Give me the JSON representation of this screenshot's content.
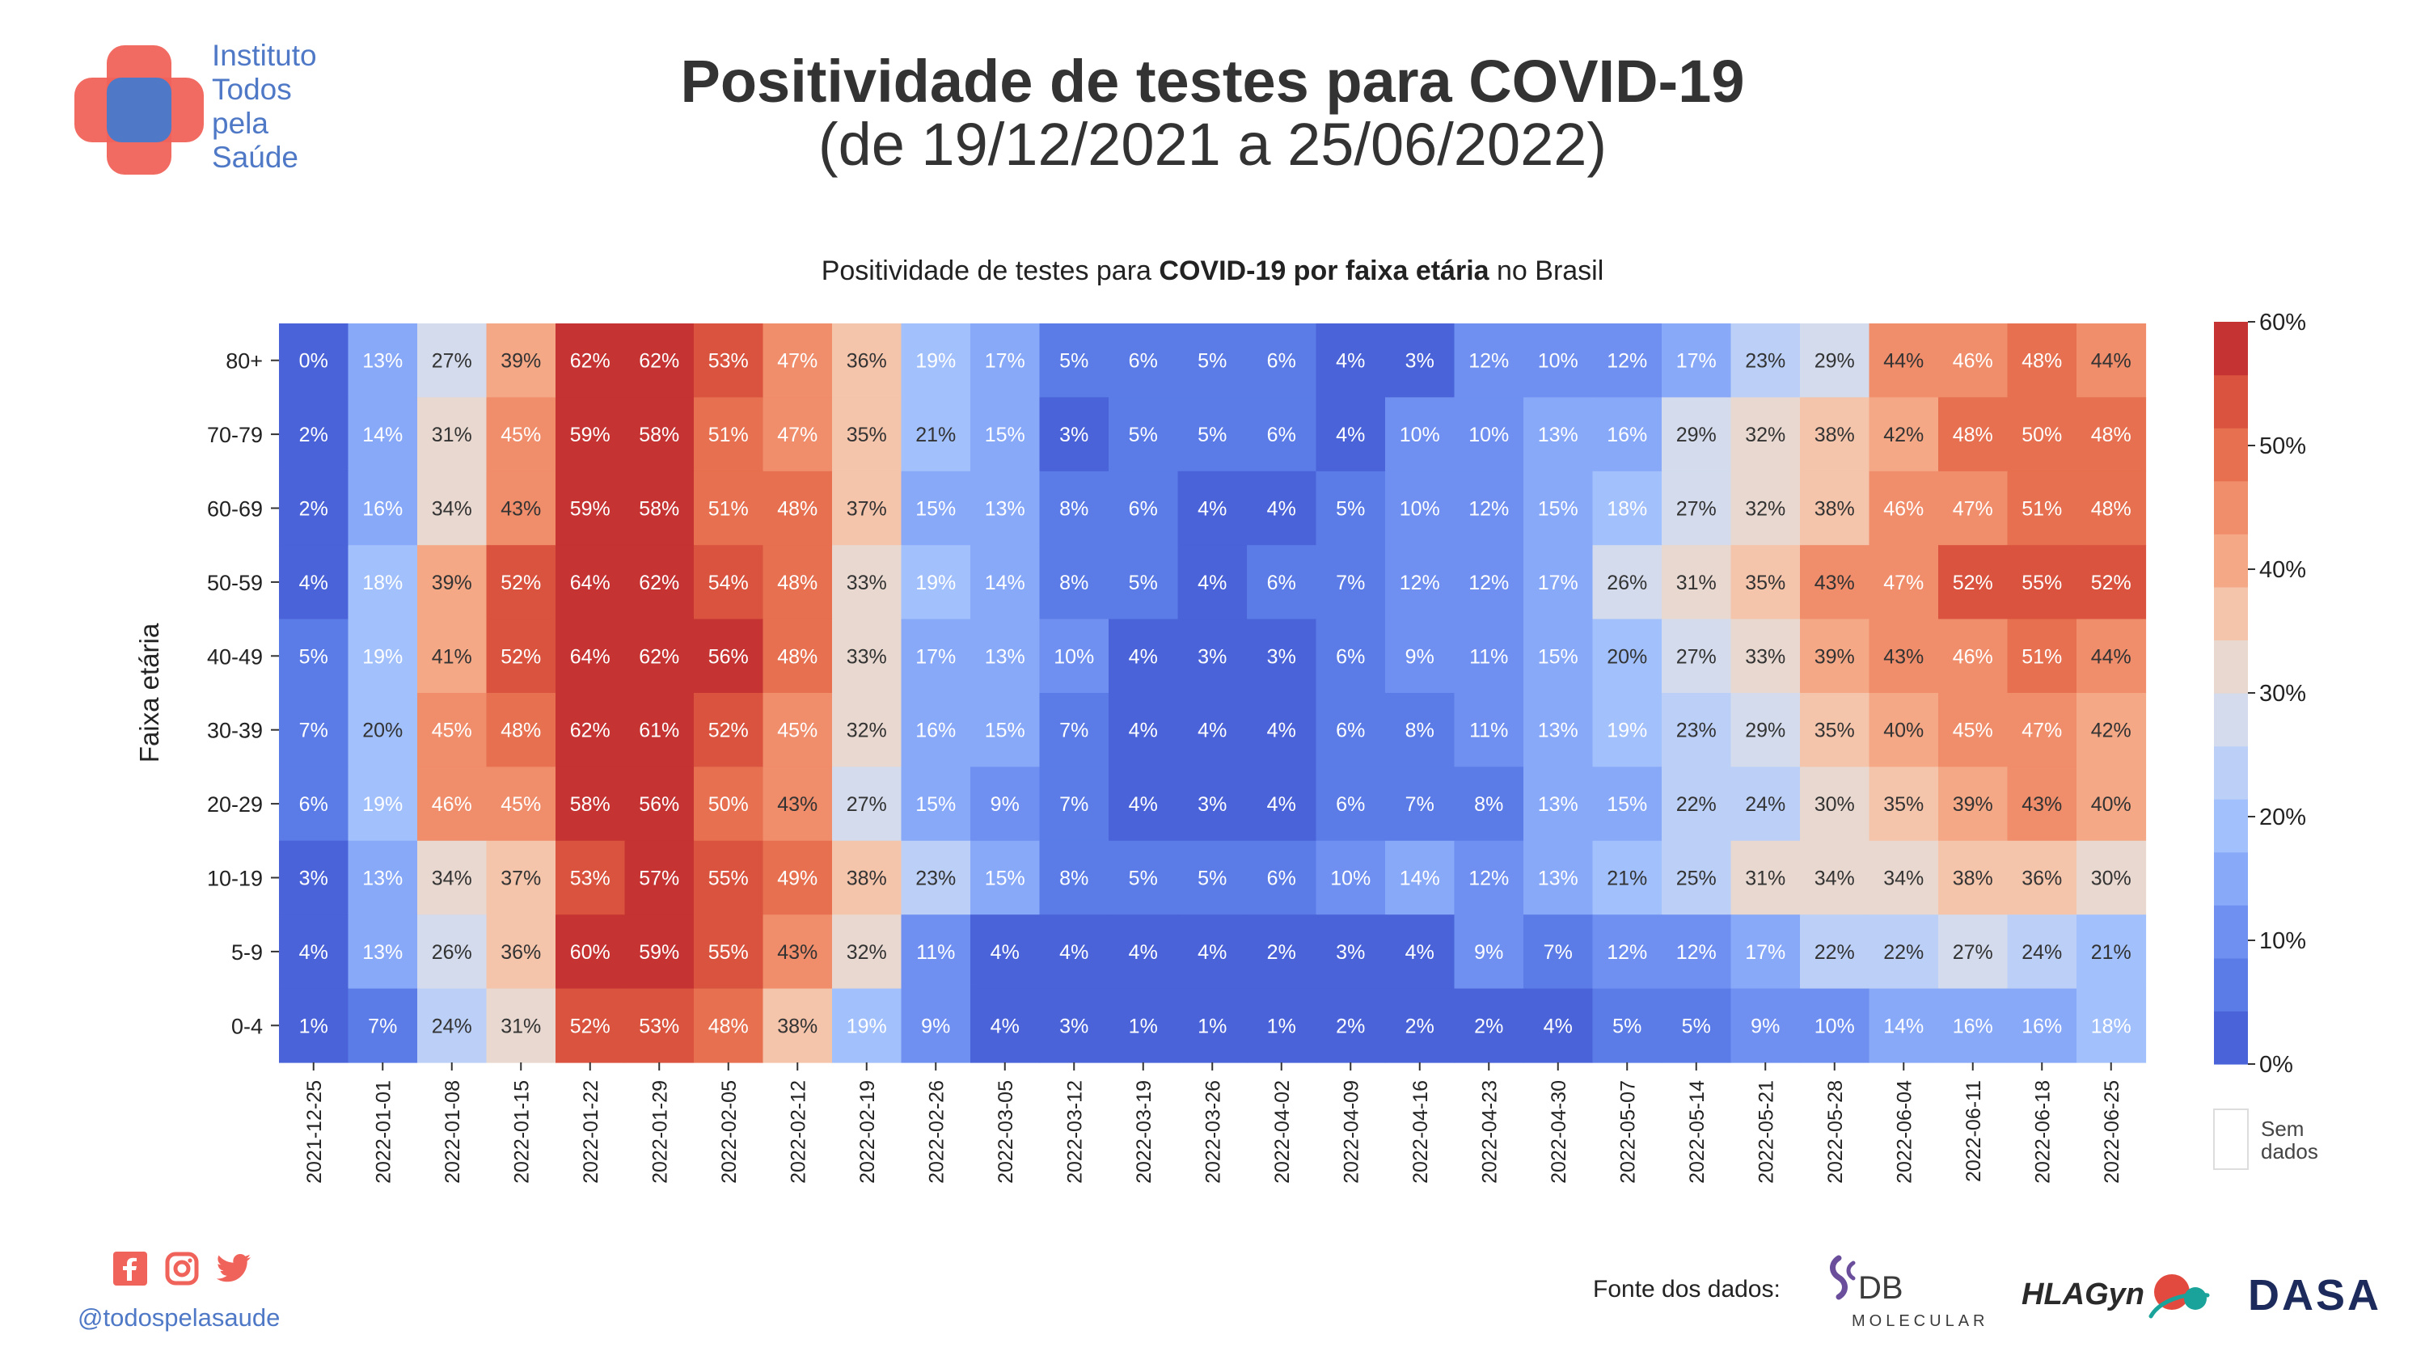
{
  "header": {
    "logo_lines": [
      "Instituto",
      "Todos",
      "pela",
      "Saúde"
    ],
    "title": "Positividade de testes para COVID-19",
    "subtitle": "(de 19/12/2021 a 25/06/2022)"
  },
  "chart_subtitle": {
    "prefix": "Positividade de testes para ",
    "bold": "COVID-19 por faixa etária",
    "suffix": " no Brasil"
  },
  "chart_data": {
    "type": "heatmap",
    "ylabel": "Faixa etária",
    "x": [
      "2021-12-25",
      "2022-01-01",
      "2022-01-08",
      "2022-01-15",
      "2022-01-22",
      "2022-01-29",
      "2022-02-05",
      "2022-02-12",
      "2022-02-19",
      "2022-02-26",
      "2022-03-05",
      "2022-03-12",
      "2022-03-19",
      "2022-03-26",
      "2022-04-02",
      "2022-04-09",
      "2022-04-16",
      "2022-04-23",
      "2022-04-30",
      "2022-05-07",
      "2022-05-14",
      "2022-05-21",
      "2022-05-28",
      "2022-06-04",
      "2022-06-11",
      "2022-06-18",
      "2022-06-25"
    ],
    "y": [
      "80+",
      "70-79",
      "60-69",
      "50-59",
      "40-49",
      "30-39",
      "20-29",
      "10-19",
      "5-9",
      "0-4"
    ],
    "values": [
      [
        0,
        13,
        27,
        39,
        62,
        62,
        53,
        47,
        36,
        19,
        17,
        5,
        6,
        5,
        6,
        4,
        3,
        12,
        10,
        12,
        17,
        23,
        29,
        44,
        46,
        48,
        44
      ],
      [
        2,
        14,
        31,
        45,
        59,
        58,
        51,
        47,
        35,
        21,
        15,
        3,
        5,
        5,
        6,
        4,
        10,
        10,
        13,
        16,
        29,
        32,
        38,
        42,
        48,
        50,
        48
      ],
      [
        2,
        16,
        34,
        43,
        59,
        58,
        51,
        48,
        37,
        15,
        13,
        8,
        6,
        4,
        4,
        5,
        10,
        12,
        15,
        18,
        27,
        32,
        38,
        46,
        47,
        51,
        48
      ],
      [
        4,
        18,
        39,
        52,
        64,
        62,
        54,
        48,
        33,
        19,
        14,
        8,
        5,
        4,
        6,
        7,
        12,
        12,
        17,
        26,
        31,
        35,
        43,
        47,
        52,
        55,
        52
      ],
      [
        5,
        19,
        41,
        52,
        64,
        62,
        56,
        48,
        33,
        17,
        13,
        10,
        4,
        3,
        3,
        6,
        9,
        11,
        15,
        20,
        27,
        33,
        39,
        43,
        46,
        51,
        44
      ],
      [
        7,
        20,
        45,
        48,
        62,
        61,
        52,
        45,
        32,
        16,
        15,
        7,
        4,
        4,
        4,
        6,
        8,
        11,
        13,
        19,
        23,
        29,
        35,
        40,
        45,
        47,
        42
      ],
      [
        6,
        19,
        46,
        45,
        58,
        56,
        50,
        43,
        27,
        15,
        9,
        7,
        4,
        3,
        4,
        6,
        7,
        8,
        13,
        15,
        22,
        24,
        30,
        35,
        39,
        43,
        40
      ],
      [
        3,
        13,
        34,
        37,
        53,
        57,
        55,
        49,
        38,
        23,
        15,
        8,
        5,
        5,
        6,
        10,
        14,
        12,
        13,
        21,
        25,
        31,
        34,
        34,
        38,
        36,
        30
      ],
      [
        4,
        13,
        26,
        36,
        60,
        59,
        55,
        43,
        32,
        11,
        4,
        4,
        4,
        4,
        2,
        3,
        4,
        9,
        7,
        12,
        12,
        17,
        22,
        22,
        27,
        24,
        21
      ],
      [
        1,
        7,
        24,
        31,
        52,
        53,
        48,
        38,
        19,
        9,
        4,
        3,
        1,
        1,
        1,
        2,
        2,
        2,
        4,
        5,
        5,
        9,
        10,
        14,
        16,
        16,
        18
      ]
    ],
    "value_suffix": "%",
    "colorbar": {
      "ticks": [
        "0%",
        "10%",
        "20%",
        "30%",
        "40%",
        "50%",
        "60%"
      ],
      "range": [
        0,
        60
      ],
      "colors": [
        "#4a63d8",
        "#5b7ce7",
        "#6f90f1",
        "#88a8f8",
        "#a2c0fb",
        "#bcd0f7",
        "#d3dbec",
        "#e8d8cf",
        "#f4c4ab",
        "#f5a886",
        "#f08d6b",
        "#e6704f",
        "#d9533e",
        "#c53333"
      ]
    },
    "no_data_label": [
      "Sem",
      "dados"
    ]
  },
  "footer": {
    "handle": "@todospelasaude",
    "source_label": "Fonte dos dados:",
    "partners": [
      "DB",
      "MOLECULAR",
      "HLAGyn",
      "DASA"
    ],
    "social": [
      "facebook-icon",
      "instagram-icon",
      "twitter-icon"
    ]
  },
  "colors": {
    "brand_blue": "#4f79c6",
    "brand_red": "#f0635a",
    "social_red": "#f0635a"
  }
}
